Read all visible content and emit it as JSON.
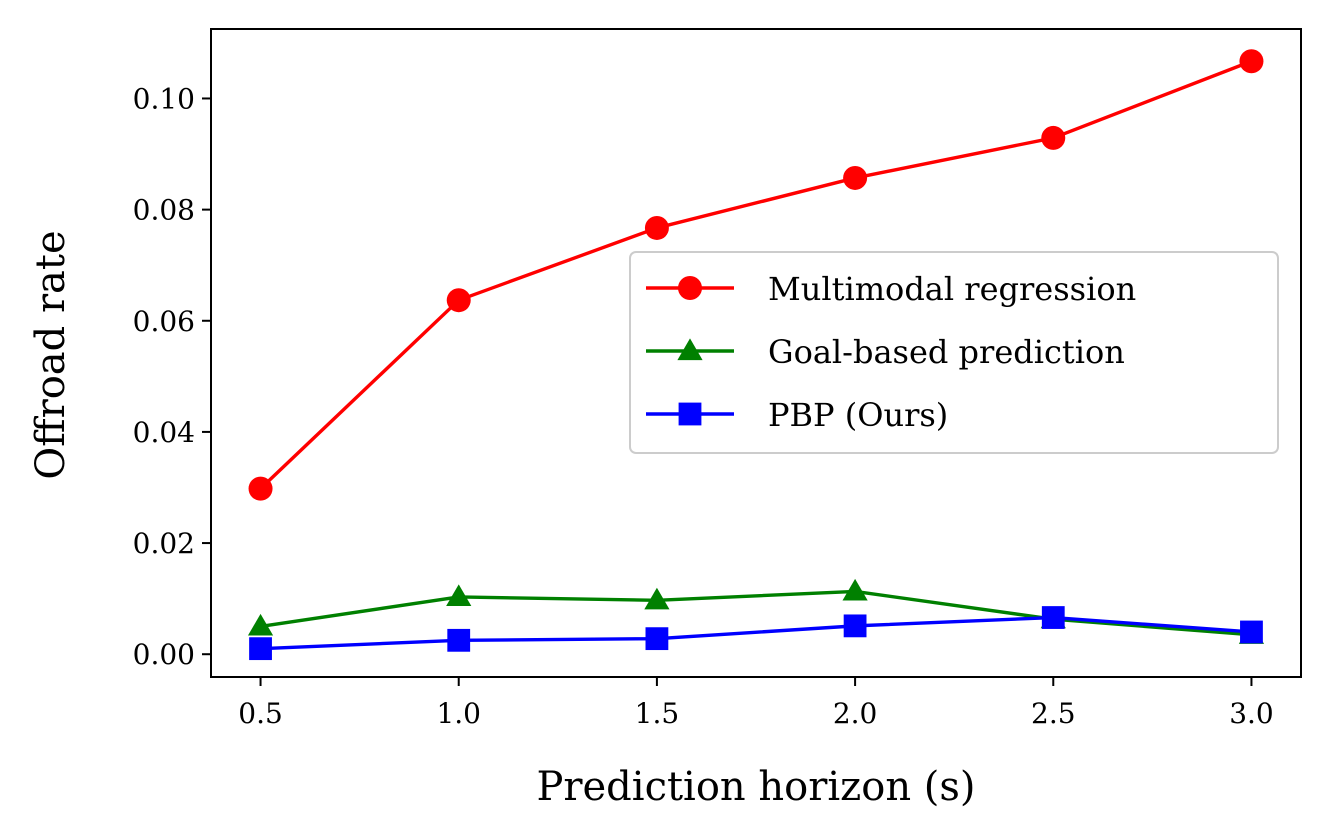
{
  "chart_data": {
    "type": "line",
    "title": "",
    "xlabel": "Prediction horizon (s)",
    "ylabel": "Offroad rate",
    "x": [
      0.5,
      1.0,
      1.5,
      2.0,
      2.5,
      3.0
    ],
    "xticks": [
      0.5,
      1.0,
      1.5,
      2.0,
      2.5,
      3.0
    ],
    "xtick_labels": [
      "0.5",
      "1.0",
      "1.5",
      "2.0",
      "2.5",
      "3.0"
    ],
    "yticks": [
      0.0,
      0.02,
      0.04,
      0.06,
      0.08,
      0.1
    ],
    "ytick_labels": [
      "0.00",
      "0.02",
      "0.04",
      "0.06",
      "0.08",
      "0.10"
    ],
    "xlim": [
      0.375,
      3.125
    ],
    "ylim": [
      -0.0041,
      0.1125
    ],
    "grid": false,
    "legend_position": "center-right",
    "series": [
      {
        "name": "Multimodal regression",
        "color": "#ff0000",
        "marker": "circle",
        "values": [
          0.0298,
          0.0637,
          0.0767,
          0.0857,
          0.0929,
          0.1067
        ]
      },
      {
        "name": "Goal-based prediction",
        "color": "#008000",
        "marker": "triangle",
        "values": [
          0.005,
          0.0103,
          0.0097,
          0.0113,
          0.0063,
          0.0035
        ]
      },
      {
        "name": "PBP (Ours)",
        "color": "#0000ff",
        "marker": "square",
        "values": [
          0.001,
          0.0025,
          0.0028,
          0.0051,
          0.0066,
          0.004
        ]
      }
    ]
  }
}
